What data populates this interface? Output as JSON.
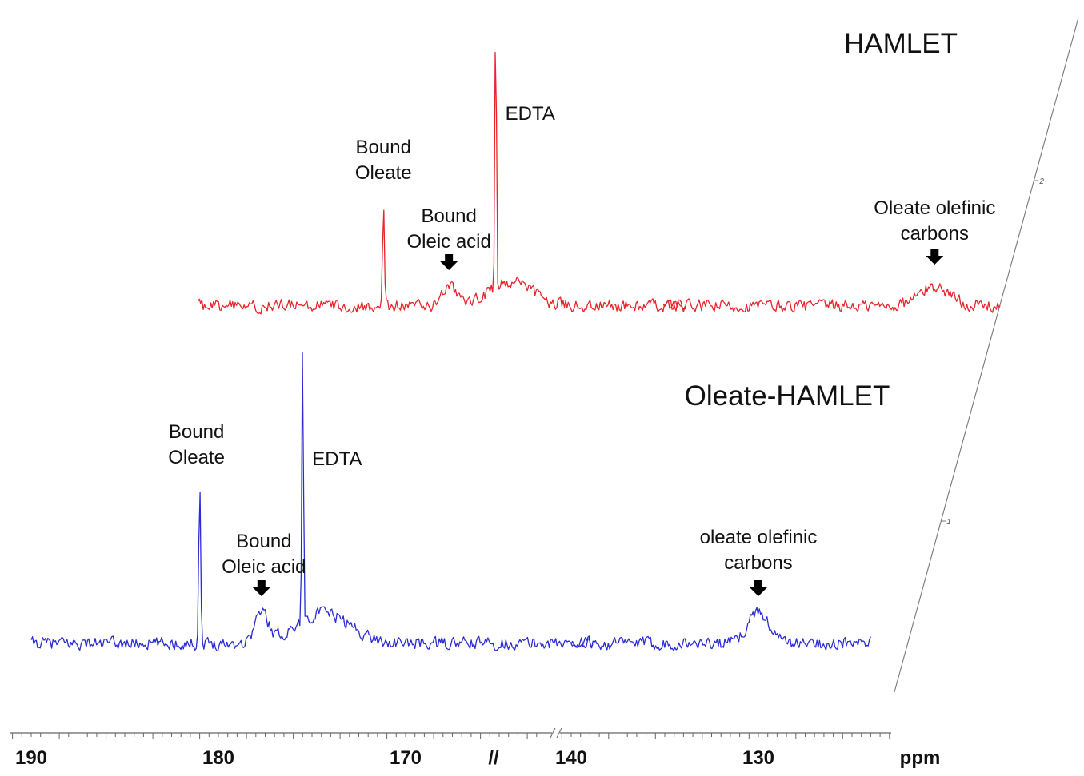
{
  "chart_data": {
    "type": "line",
    "xlabel": "ppm",
    "x_reversed": true,
    "axis_break": {
      "from": 140,
      "to": 160,
      "label": "//"
    },
    "x_segments": [
      [
        190,
        160
      ],
      [
        140,
        122
      ]
    ],
    "x_ticks": [
      190,
      180,
      170,
      140,
      130
    ],
    "x_tick_labels": [
      "190",
      "180",
      "170",
      "140",
      "130"
    ],
    "stack_axis_ticks": [
      "1",
      "2"
    ],
    "colors": {
      "HAMLET": "#e8232a",
      "Oleate-HAMLET": "#2b2bd6"
    },
    "spectra": [
      {
        "label": "HAMLET",
        "x_range": [
          186,
          122
        ],
        "peaks": [
          {
            "x": 176.1,
            "height": 130,
            "width": 0.07
          },
          {
            "x": 172.6,
            "height": 22,
            "width": 0.6
          },
          {
            "x": 170.1,
            "height": 360,
            "width": 0.06
          },
          {
            "x": 169.3,
            "height": 30,
            "width": 1.6
          },
          {
            "x": 125.5,
            "height": 24,
            "width": 1.2
          }
        ],
        "annotations": [
          {
            "lines": [
              "Bound",
              "Oleate"
            ],
            "x": 176.1,
            "arrow": false
          },
          {
            "lines": [
              "Bound",
              "Oleic acid"
            ],
            "x": 172.6,
            "arrow": true
          },
          {
            "lines": [
              "EDTA"
            ],
            "x": 170.1,
            "arrow": false
          },
          {
            "lines": [
              "Oleate olefinic",
              "carbons"
            ],
            "x": 125.5,
            "arrow": true
          }
        ]
      },
      {
        "label": "Oleate-HAMLET",
        "x_range": [
          190,
          124
        ],
        "peaks": [
          {
            "x": 181.0,
            "height": 205,
            "width": 0.07
          },
          {
            "x": 177.7,
            "height": 38,
            "width": 0.5
          },
          {
            "x": 175.5,
            "height": 355,
            "width": 0.06
          },
          {
            "x": 174.4,
            "height": 38,
            "width": 2.0
          },
          {
            "x": 130.0,
            "height": 40,
            "width": 0.8
          }
        ],
        "annotations": [
          {
            "lines": [
              "Bound",
              "Oleate"
            ],
            "x": 181.0,
            "arrow": false
          },
          {
            "lines": [
              "Bound",
              "Oleic acid"
            ],
            "x": 177.7,
            "arrow": true
          },
          {
            "lines": [
              "EDTA"
            ],
            "x": 175.5,
            "arrow": false
          },
          {
            "lines": [
              "oleate olefinic",
              "carbons"
            ],
            "x": 130.0,
            "arrow": true
          }
        ]
      }
    ]
  }
}
